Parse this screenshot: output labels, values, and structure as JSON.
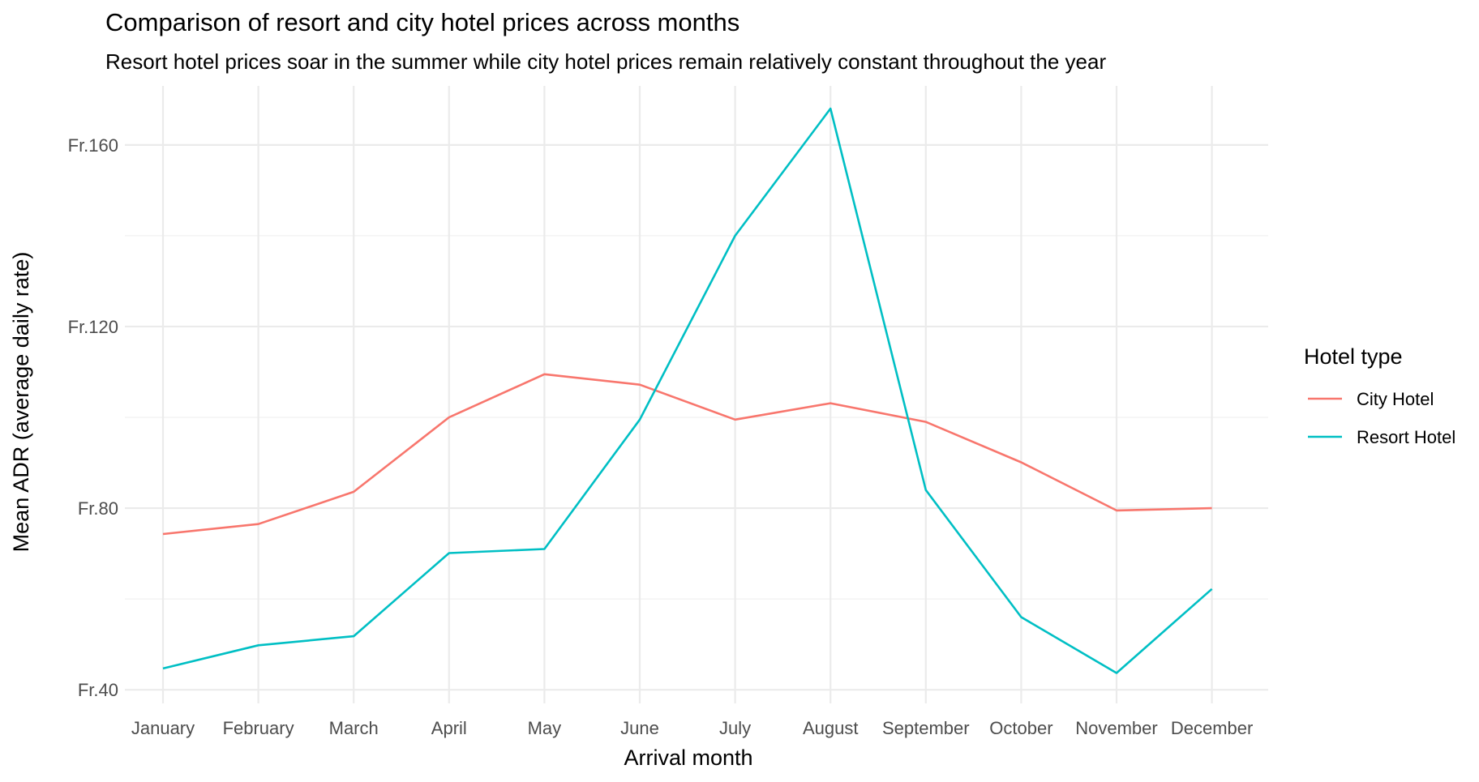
{
  "chart_data": {
    "type": "line",
    "title": "Comparison of resort and city hotel prices across months",
    "subtitle": "Resort hotel prices soar in the summer while city hotel prices remain relatively constant throughout the year",
    "xlabel": "Arrival month",
    "ylabel": "Mean ADR (average daily rate)",
    "categories": [
      "January",
      "February",
      "March",
      "April",
      "May",
      "June",
      "July",
      "August",
      "September",
      "October",
      "November",
      "December"
    ],
    "ylim": [
      37,
      173
    ],
    "yticks": [
      40,
      80,
      120,
      160
    ],
    "ytick_labels": [
      "Fr.40",
      "Fr.80",
      "Fr.120",
      "Fr.160"
    ],
    "grid": true,
    "legend": {
      "title": "Hotel type",
      "position": "right"
    },
    "series": [
      {
        "name": "City Hotel",
        "color": "#F8766D",
        "values": [
          74.3,
          76.5,
          83.6,
          100.0,
          109.5,
          107.2,
          99.5,
          103.1,
          99.0,
          90.1,
          79.5,
          80.0
        ]
      },
      {
        "name": "Resort Hotel",
        "color": "#00BFC4",
        "values": [
          44.7,
          49.8,
          51.8,
          70.1,
          71.0,
          99.5,
          140.0,
          168.0,
          84.0,
          56.0,
          43.7,
          62.2
        ]
      }
    ]
  }
}
